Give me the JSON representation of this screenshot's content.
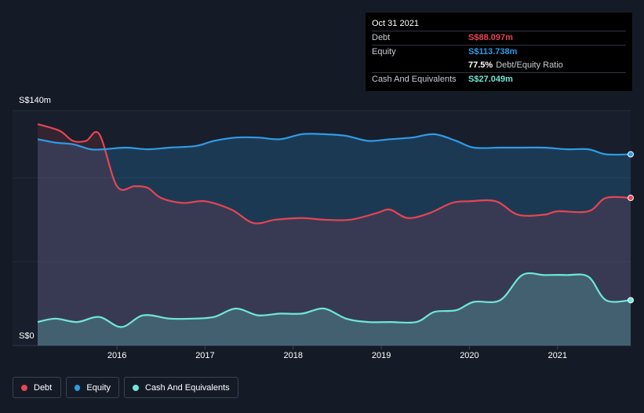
{
  "tooltip": {
    "date": "Oct 31 2021",
    "rows": [
      {
        "label": "Debt",
        "value": "S$88.097m",
        "color": "#e64553"
      },
      {
        "label": "Equity",
        "value": "S$113.738m",
        "color": "#2f9be6"
      },
      {
        "label": "",
        "value": "77.5%",
        "suffix": "Debt/Equity Ratio",
        "color": "#ffffff"
      },
      {
        "label": "Cash And Equivalents",
        "value": "S$27.049m",
        "color": "#6ee7d8"
      }
    ]
  },
  "legend": [
    {
      "label": "Debt",
      "color": "#e64553"
    },
    {
      "label": "Equity",
      "color": "#2f9be6"
    },
    {
      "label": "Cash And Equivalents",
      "color": "#6ee7d8"
    }
  ],
  "chart_data": {
    "type": "area",
    "y_tick_labels": [
      "S$140m",
      "S$0"
    ],
    "ylim": [
      0,
      140
    ],
    "xlim": [
      2015.1,
      2021.83
    ],
    "x_tick_labels": [
      "2016",
      "2017",
      "2018",
      "2019",
      "2020",
      "2021"
    ],
    "x_ticks": [
      2016,
      2017,
      2018,
      2019,
      2020,
      2021
    ],
    "grid": true,
    "legend_position": "bottom-left",
    "series": [
      {
        "name": "Debt",
        "color": "#e64553",
        "x": [
          2015.1,
          2015.35,
          2015.5,
          2015.65,
          2015.8,
          2016.0,
          2016.2,
          2016.35,
          2016.5,
          2016.75,
          2017.0,
          2017.3,
          2017.55,
          2017.8,
          2018.1,
          2018.35,
          2018.65,
          2018.95,
          2019.1,
          2019.3,
          2019.55,
          2019.8,
          2020.0,
          2020.3,
          2020.55,
          2020.85,
          2021.0,
          2021.35,
          2021.55,
          2021.83
        ],
        "values": [
          132,
          128,
          122,
          122,
          126,
          95,
          95,
          94,
          88,
          85,
          86,
          81,
          73,
          75,
          76,
          75,
          75,
          79,
          81,
          76,
          79,
          85,
          86,
          86,
          78,
          78,
          80,
          80,
          88,
          88
        ]
      },
      {
        "name": "Equity",
        "color": "#2f9be6",
        "x": [
          2015.1,
          2015.3,
          2015.5,
          2015.7,
          2015.85,
          2016.1,
          2016.35,
          2016.6,
          2016.9,
          2017.1,
          2017.35,
          2017.6,
          2017.85,
          2018.1,
          2018.35,
          2018.6,
          2018.85,
          2019.1,
          2019.35,
          2019.6,
          2019.85,
          2020.05,
          2020.35,
          2020.6,
          2020.85,
          2021.1,
          2021.35,
          2021.55,
          2021.83
        ],
        "values": [
          123,
          121,
          120,
          117,
          117,
          118,
          117,
          118,
          119,
          122,
          124,
          124,
          123,
          126,
          126,
          125,
          122,
          123,
          124,
          126,
          122,
          118,
          118,
          118,
          118,
          117,
          117,
          114,
          114
        ]
      },
      {
        "name": "Cash And Equivalents",
        "color": "#6ee7d8",
        "x": [
          2015.1,
          2015.3,
          2015.55,
          2015.8,
          2016.05,
          2016.3,
          2016.6,
          2016.85,
          2017.1,
          2017.35,
          2017.6,
          2017.85,
          2018.1,
          2018.35,
          2018.6,
          2018.85,
          2019.1,
          2019.4,
          2019.6,
          2019.85,
          2020.05,
          2020.35,
          2020.6,
          2020.85,
          2021.1,
          2021.35,
          2021.55,
          2021.83
        ],
        "values": [
          14,
          16,
          14,
          17,
          11,
          18,
          16,
          16,
          17,
          22,
          18,
          19,
          19,
          22,
          16,
          14,
          14,
          14,
          20,
          21,
          26,
          27,
          42,
          42,
          42,
          41,
          27,
          27
        ]
      }
    ]
  }
}
